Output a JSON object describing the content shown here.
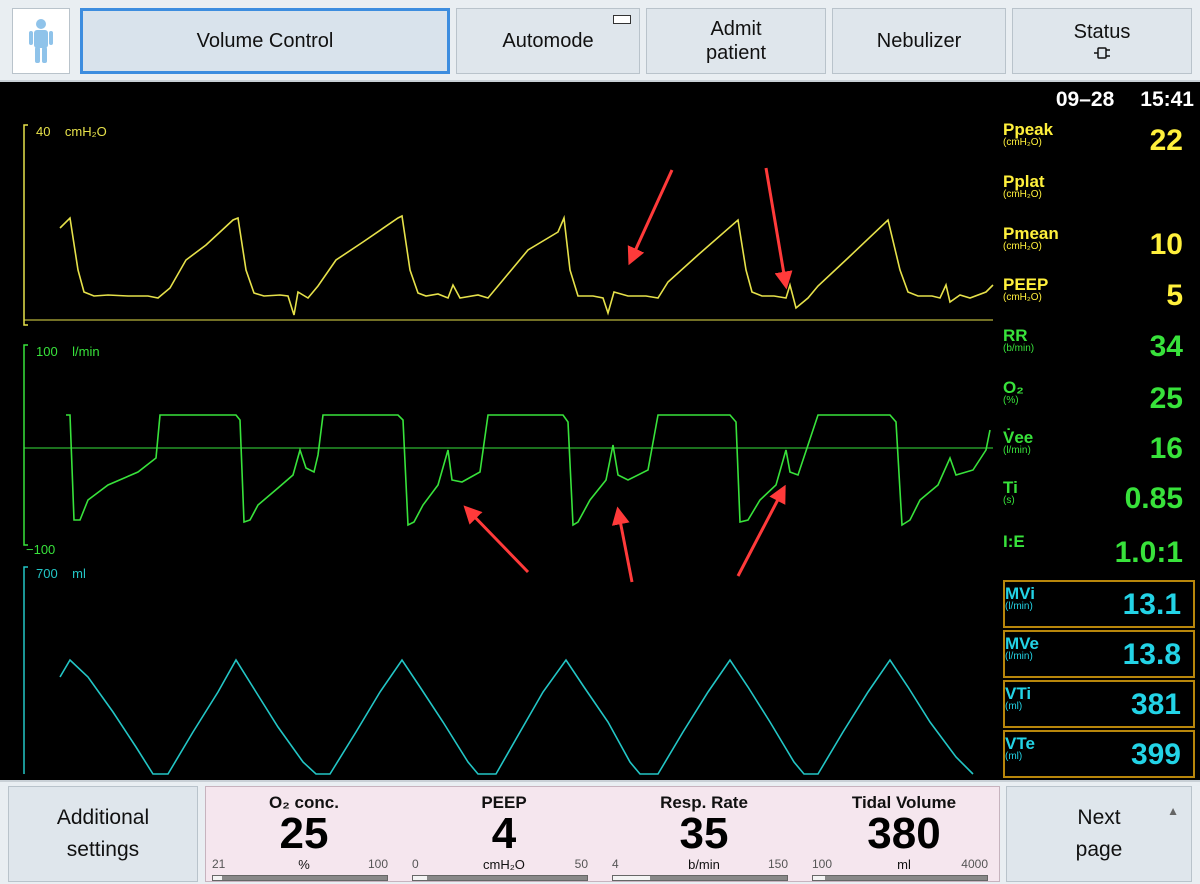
{
  "header": {
    "mode_label": "Volume Control",
    "automode_label": "Automode",
    "admit_line1": "Admit",
    "admit_line2": "patient",
    "nebulizer_label": "Nebulizer",
    "status_label": "Status",
    "status_icon": "plug-icon"
  },
  "clock": {
    "date": "09–28",
    "time": "15:41"
  },
  "waveforms": {
    "pressure": {
      "scale": "40",
      "unit": "cmH₂O",
      "color": "#e6e14a"
    },
    "flow": {
      "scale_max": "100",
      "unit": "l/min",
      "scale_min": "−100",
      "color": "#38e23b"
    },
    "volume": {
      "scale": "700",
      "unit": "ml",
      "color": "#23c6c6"
    },
    "annotation_color": "#ff3a3a"
  },
  "parameters": [
    {
      "name": "Ppeak",
      "unit": "(cmH₂O)",
      "value": "22",
      "color": "#fff03c"
    },
    {
      "name": "Pplat",
      "unit": "(cmH₂O)",
      "value": "",
      "color": "#fff03c"
    },
    {
      "name": "Pmean",
      "unit": "(cmH₂O)",
      "value": "10",
      "color": "#fff03c"
    },
    {
      "name": "PEEP",
      "unit": "(cmH₂O)",
      "value": "5",
      "color": "#fff03c"
    },
    {
      "name": "RR",
      "unit": "(b/min)",
      "value": "34",
      "color": "#38e23b"
    },
    {
      "name": "O₂",
      "unit": "(%)",
      "value": "25",
      "color": "#38e23b"
    },
    {
      "name": "V̇ee",
      "unit": "(l/min)",
      "value": "16",
      "color": "#38e23b"
    },
    {
      "name": "Ti",
      "unit": "(s)",
      "value": "0.85",
      "color": "#38e23b"
    },
    {
      "name": "I:E",
      "unit": "",
      "value": "1.0:1",
      "color": "#38e23b"
    }
  ],
  "boxed_parameters": [
    {
      "name": "MVi",
      "unit": "(l/min)",
      "value": "13.1",
      "color": "#23d3e6"
    },
    {
      "name": "MVe",
      "unit": "(l/min)",
      "value": "13.8",
      "color": "#23d3e6"
    },
    {
      "name": "VTi",
      "unit": "(ml)",
      "value": "381",
      "color": "#23d3e6"
    },
    {
      "name": "VTe",
      "unit": "(ml)",
      "value": "399",
      "color": "#23d3e6"
    }
  ],
  "footer": {
    "additional_line1": "Additional",
    "additional_line2": "settings",
    "next_line1": "Next",
    "next_line2": "page",
    "settings": [
      {
        "label": "O₂ conc.",
        "value": "25",
        "unit": "%",
        "min": "21",
        "max": "100",
        "level": 0.05
      },
      {
        "label": "PEEP",
        "value": "4",
        "unit": "cmH₂O",
        "min": "0",
        "max": "50",
        "level": 0.08
      },
      {
        "label": "Resp. Rate",
        "value": "35",
        "unit": "b/min",
        "min": "4",
        "max": "150",
        "level": 0.21
      },
      {
        "label": "Tidal Volume",
        "value": "380",
        "unit": "ml",
        "min": "100",
        "max": "4000",
        "level": 0.07
      }
    ]
  }
}
